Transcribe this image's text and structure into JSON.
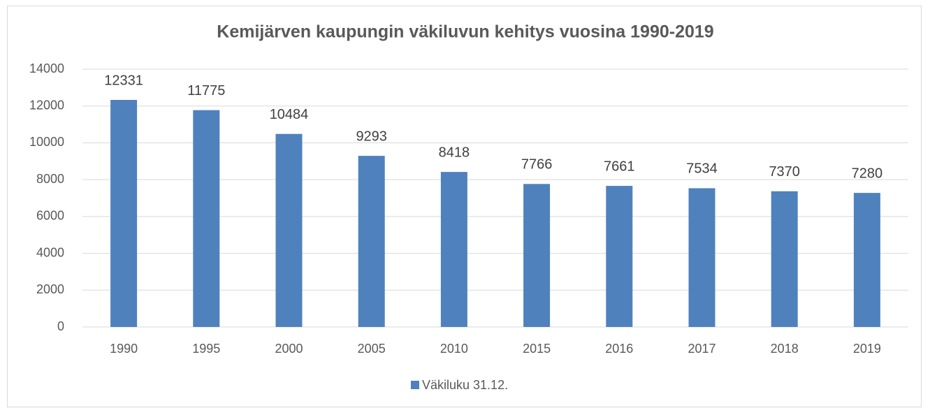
{
  "chart_data": {
    "type": "bar",
    "title": "Kemijärven kaupungin väkiluvun kehitys vuosina 1990-2019",
    "categories": [
      "1990",
      "1995",
      "2000",
      "2005",
      "2010",
      "2015",
      "2016",
      "2017",
      "2018",
      "2019"
    ],
    "series": [
      {
        "name": "Väkiluku 31.12.",
        "color": "#4f81bd",
        "values": [
          12331,
          11775,
          10484,
          9293,
          8418,
          7766,
          7661,
          7534,
          7370,
          7280
        ]
      }
    ],
    "ylim": [
      0,
      14000
    ],
    "yticks": [
      0,
      2000,
      4000,
      6000,
      8000,
      10000,
      12000,
      14000
    ],
    "grid": true,
    "legend": "bottom"
  }
}
